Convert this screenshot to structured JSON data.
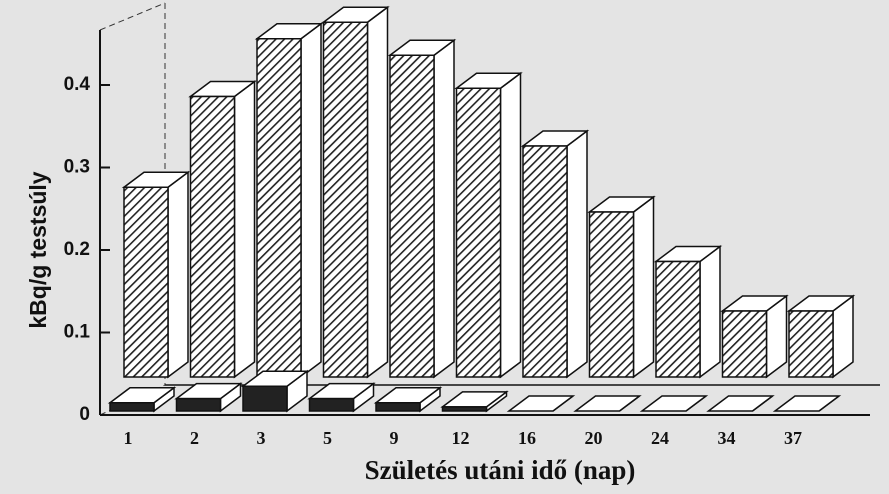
{
  "chart_data": {
    "type": "bar3d",
    "categories": [
      "1",
      "2",
      "3",
      "5",
      "9",
      "12",
      "16",
      "20",
      "24",
      "34",
      "37"
    ],
    "series": [
      {
        "color": "#333333",
        "values": [
          0.23,
          0.34,
          0.41,
          0.43,
          0.39,
          0.35,
          0.28,
          0.2,
          0.14,
          0.08,
          0.08
        ]
      },
      {
        "color": "#222222",
        "values": [
          0.01,
          0.015,
          0.03,
          0.015,
          0.01,
          0.005,
          0,
          0,
          0,
          0,
          0
        ]
      }
    ],
    "ylim": [
      0,
      0.4
    ],
    "yticks": [
      0,
      0.1,
      0.2,
      0.3,
      0.4
    ],
    "ylabel": "kBq/g testsúly",
    "xlabel": "Születés utáni idő (nap)"
  }
}
